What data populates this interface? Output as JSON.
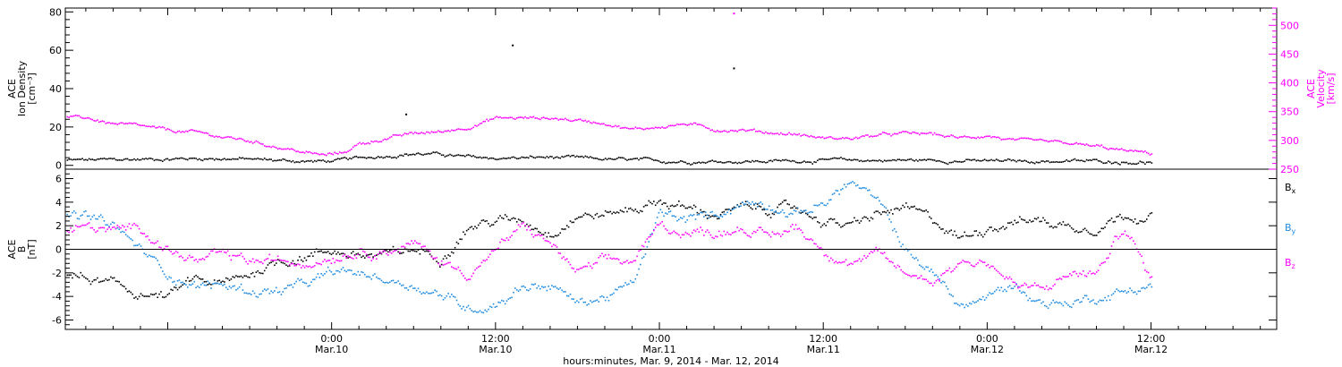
{
  "colors": {
    "black": "#000000",
    "magenta": "#ff00ff",
    "blue": "#1e8be0"
  },
  "x_axis": {
    "title": "hours:minutes, Mar. 9, 2014 - Mar. 12, 2014",
    "ticks": [
      {
        "hours": 24,
        "time": "0:00",
        "date": "Mar.10"
      },
      {
        "hours": 36,
        "time": "12:00",
        "date": "Mar.10"
      },
      {
        "hours": 48,
        "time": "0:00",
        "date": "Mar.11"
      },
      {
        "hours": 60,
        "time": "12:00",
        "date": "Mar.11"
      },
      {
        "hours": 72,
        "time": "0:00",
        "date": "Mar.12"
      },
      {
        "hours": 84,
        "time": "12:00",
        "date": "Mar.12"
      }
    ]
  },
  "chart_data": [
    {
      "type": "scatter",
      "panel": "top",
      "xlim_hours": [
        4.5,
        93.2
      ],
      "left_axis": {
        "label_lines": [
          "ACE",
          "Ion Density",
          "[cm⁻³]"
        ],
        "ylim": [
          -2,
          82
        ],
        "ticks": [
          0,
          20,
          40,
          60,
          80
        ],
        "color": "#000000"
      },
      "right_axis": {
        "label_lines": [
          "ACE",
          "Velocity",
          "[km/s]"
        ],
        "ylim": [
          250,
          530
        ],
        "ticks": [
          250,
          300,
          350,
          400,
          450,
          500
        ],
        "color": "#ff00ff"
      },
      "series": [
        {
          "axis": "left",
          "color": "#000000",
          "x": [
            4.6,
            8,
            12,
            16,
            20,
            22,
            24,
            26,
            28,
            30,
            32,
            34,
            36,
            40,
            44,
            48,
            52,
            56,
            60,
            64,
            68,
            72,
            76,
            80,
            84
          ],
          "y": [
            3,
            3.2,
            3.8,
            4,
            3,
            2.5,
            2.5,
            4,
            5.5,
            6.5,
            6,
            4.5,
            4,
            4.5,
            3.5,
            2.5,
            2.5,
            2.5,
            3,
            3,
            3,
            2.5,
            2.5,
            2.5,
            2
          ]
        },
        {
          "axis": "right",
          "color": "#ff00ff",
          "x": [
            4.6,
            6,
            8,
            10,
            12,
            14,
            16,
            18,
            20,
            22,
            23.5,
            24.8,
            26,
            28,
            30,
            32,
            34,
            36,
            40,
            44,
            46,
            48,
            50,
            52,
            54,
            56,
            58,
            60,
            62,
            64,
            66,
            68,
            70,
            72,
            74,
            76,
            78,
            80,
            82,
            84
          ],
          "y": [
            340,
            340,
            330,
            325,
            318,
            315,
            307,
            300,
            290,
            280,
            275,
            280,
            295,
            305,
            313,
            316,
            325,
            340,
            340,
            332,
            320,
            325,
            330,
            320,
            320,
            315,
            312,
            305,
            305,
            310,
            313,
            312,
            305,
            310,
            300,
            298,
            295,
            290,
            283,
            278
          ]
        }
      ],
      "points": [
        {
          "axis": "left",
          "x": 29.4,
          "y": 27,
          "color": "#000000"
        },
        {
          "axis": "left",
          "x": 37.2,
          "y": 63,
          "color": "#000000"
        },
        {
          "axis": "left",
          "x": 53.4,
          "y": 51,
          "color": "#000000"
        },
        {
          "axis": "right",
          "x": 53.4,
          "y": 522,
          "color": "#ff00ff"
        }
      ]
    },
    {
      "type": "scatter",
      "panel": "bottom",
      "xlim_hours": [
        4.5,
        93.2
      ],
      "left_axis": {
        "label_lines": [
          "ACE",
          "B",
          "[nT]"
        ],
        "ylim": [
          -6.8,
          6.8
        ],
        "ticks": [
          -6,
          -4,
          -2,
          0,
          2,
          4,
          6
        ],
        "color": "#000000"
      },
      "zero_line": true,
      "legend": [
        {
          "name": "Bx",
          "color": "#000000"
        },
        {
          "name": "By",
          "color": "#1e8be0"
        },
        {
          "name": "Bz",
          "color": "#ff00ff"
        }
      ],
      "series": [
        {
          "name": "Bx",
          "color": "#000000",
          "x": [
            4.6,
            6,
            8,
            10,
            12,
            14,
            16,
            18,
            20,
            22,
            24,
            26,
            28,
            30,
            32,
            34,
            36,
            38,
            40,
            42,
            44,
            46,
            48,
            50,
            52,
            54,
            56,
            58,
            60,
            62,
            64,
            66,
            68,
            70,
            72,
            74,
            76,
            78,
            80,
            82,
            84
          ],
          "y": [
            -2,
            -2.5,
            -3,
            -3.8,
            -4,
            -2.5,
            -3,
            -2,
            -1,
            -0.5,
            0,
            -0.5,
            -0.5,
            0,
            -0.5,
            2,
            2.5,
            2.5,
            1.5,
            3,
            3,
            3.5,
            4.2,
            3.5,
            3,
            3.5,
            3.5,
            3.5,
            2.5,
            2,
            3,
            3.5,
            2.5,
            1,
            2,
            2.5,
            2.5,
            2,
            2,
            3,
            3
          ]
        },
        {
          "name": "By",
          "color": "#1e8be0",
          "x": [
            4.6,
            6,
            8,
            10,
            12,
            14,
            16,
            18,
            20,
            22,
            24,
            26,
            28,
            30,
            32,
            34,
            36,
            38,
            40,
            42,
            44,
            46,
            48,
            50,
            52,
            54,
            56,
            58,
            60,
            62,
            64,
            66,
            68,
            70,
            72,
            74,
            76,
            78,
            80,
            82,
            84
          ],
          "y": [
            3,
            2.8,
            2,
            0,
            -2,
            -3,
            -3,
            -3.5,
            -3.5,
            -3,
            -2,
            -2,
            -2.5,
            -3,
            -3.8,
            -5,
            -4.5,
            -3,
            -3,
            -4.5,
            -4,
            -3,
            3,
            2.5,
            3,
            4,
            4,
            3,
            4,
            5.8,
            4,
            0,
            -2,
            -4.8,
            -4,
            -3,
            -4.5,
            -4.5,
            -4,
            -3.5,
            -3
          ]
        },
        {
          "name": "Bz",
          "color": "#ff00ff",
          "x": [
            4.6,
            6,
            8,
            10,
            12,
            14,
            16,
            18,
            20,
            22,
            24,
            26,
            28,
            30,
            32,
            34,
            36,
            38,
            40,
            42,
            44,
            46,
            48,
            50,
            52,
            54,
            56,
            58,
            60,
            62,
            64,
            66,
            68,
            70,
            72,
            74,
            76,
            78,
            80,
            82,
            84
          ],
          "y": [
            1.5,
            2,
            1.5,
            2,
            0,
            -1,
            -0.5,
            -1,
            -1,
            -1,
            -0.5,
            0,
            0,
            0.5,
            -1,
            -2,
            0,
            2,
            0.5,
            -2,
            -1,
            -1,
            2,
            1.5,
            1.5,
            2,
            1,
            2,
            0,
            -1,
            -0.5,
            -2,
            -2.5,
            -1,
            -1,
            -3,
            -3.5,
            -2,
            -2,
            2,
            -2.5
          ]
        }
      ]
    }
  ]
}
